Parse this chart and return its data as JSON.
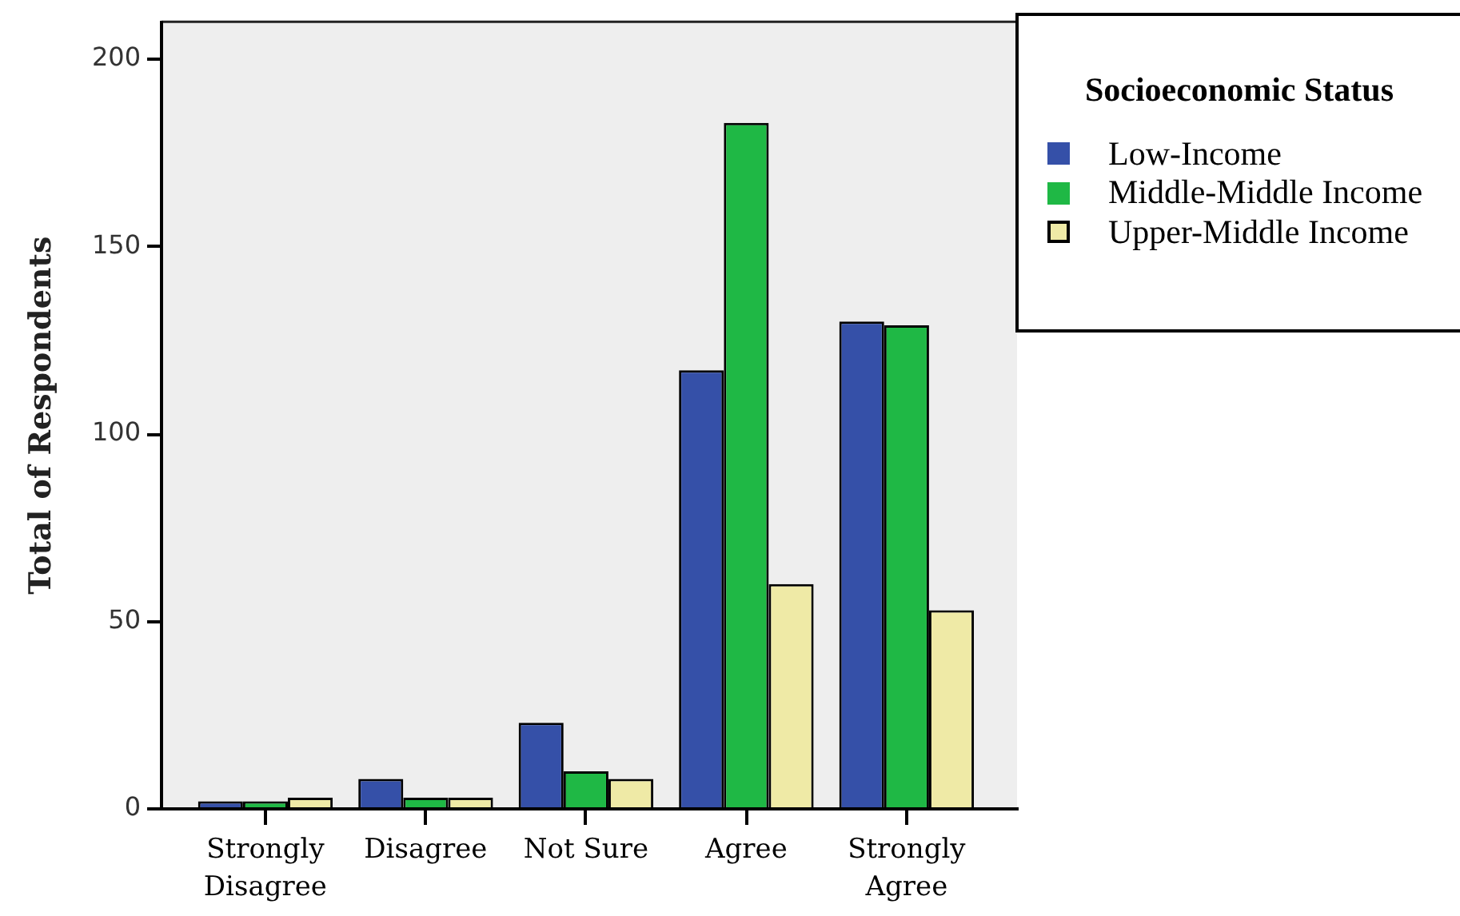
{
  "chart_data": {
    "type": "bar",
    "ylabel": "Total of Respondents",
    "legend_title": "Socioeconomic Status",
    "categories": [
      "Strongly Disagree",
      "Disagree",
      "Not Sure",
      "Agree",
      "Strongly Agree"
    ],
    "series": [
      {
        "name": "Low-Income",
        "color": "#3550a8",
        "values": [
          2,
          8,
          23,
          117,
          130
        ]
      },
      {
        "name": "Middle-Middle Income",
        "color": "#1fb845",
        "values": [
          2,
          3,
          10,
          183,
          129
        ]
      },
      {
        "name": "Upper-Middle Income",
        "color": "#efeaa6",
        "values": [
          3,
          3,
          8,
          60,
          53
        ]
      }
    ],
    "ylim": [
      0,
      210
    ],
    "yticks": [
      0,
      50,
      100,
      150,
      200
    ],
    "legend": "top right"
  }
}
